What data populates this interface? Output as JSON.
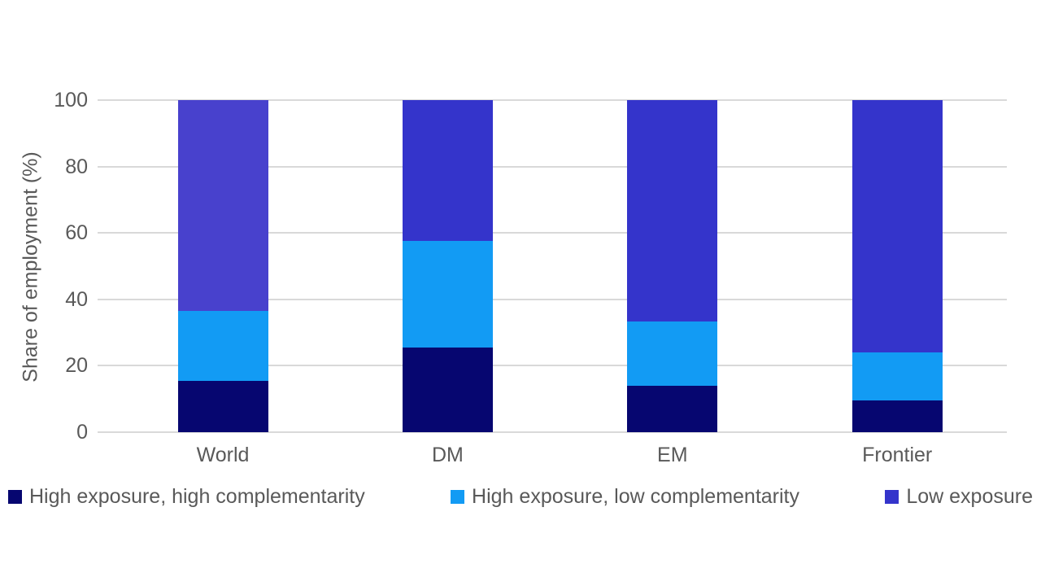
{
  "chart_data": {
    "type": "bar",
    "stacked": true,
    "title": "",
    "xlabel": "",
    "ylabel": "Share of employment (%)",
    "ylim": [
      0,
      100
    ],
    "yticks": [
      0,
      20,
      40,
      60,
      80,
      100
    ],
    "categories": [
      "World",
      "DM",
      "EM",
      "Frontier"
    ],
    "series": [
      {
        "name": "High exposure, high complementarity",
        "color": "#060670",
        "values": [
          15.5,
          25.5,
          14.0,
          9.5
        ]
      },
      {
        "name": "High exposure, low complementarity",
        "color": "#129bf4",
        "values": [
          21.0,
          32.0,
          19.3,
          14.5
        ]
      },
      {
        "name": "Low exposure",
        "color": "#3434cb",
        "values": [
          63.5,
          42.5,
          66.7,
          76.0
        ],
        "color_overrides": {
          "World": "#4841cd"
        }
      }
    ],
    "legend_position": "bottom",
    "grid": true,
    "gridline_color": "#d9d9d9",
    "text_color": "#595959"
  }
}
